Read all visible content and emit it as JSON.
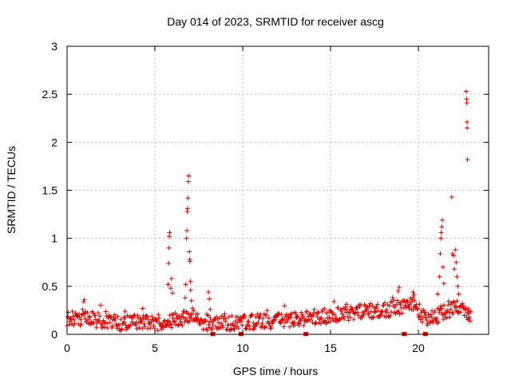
{
  "chart_data": {
    "type": "scatter",
    "title": "Day 014 of 2023, SRMTID for receiver ascg",
    "xlabel": "GPS time / hours",
    "ylabel": "SRMTID / TECUs",
    "xlim": [
      0,
      24
    ],
    "ylim": [
      0,
      3
    ],
    "x_ticks": [
      0,
      5,
      10,
      15,
      20
    ],
    "x_tick_labels": [
      "0",
      "5",
      "10",
      "15",
      "20"
    ],
    "y_ticks": [
      0,
      0.5,
      1,
      1.5,
      2,
      2.5,
      3
    ],
    "y_tick_labels": [
      "0",
      "0.5",
      "1",
      "1.5",
      "2",
      "2.5",
      "3"
    ],
    "grid": true,
    "marker": "+",
    "color": "#e00000",
    "data_gap_hours": [
      8.3,
      9.9,
      13.6,
      19.2,
      20.4
    ],
    "series": [
      {
        "name": "SRMTID",
        "background_level_profile": [
          [
            0.0,
            0.17
          ],
          [
            1.0,
            0.17
          ],
          [
            2.0,
            0.14
          ],
          [
            3.0,
            0.12
          ],
          [
            4.0,
            0.12
          ],
          [
            5.0,
            0.11
          ],
          [
            5.6,
            0.14
          ],
          [
            6.2,
            0.16
          ],
          [
            6.9,
            0.18
          ],
          [
            7.6,
            0.12
          ],
          [
            8.5,
            0.11
          ],
          [
            9.5,
            0.12
          ],
          [
            10.5,
            0.13
          ],
          [
            11.5,
            0.14
          ],
          [
            12.5,
            0.15
          ],
          [
            13.5,
            0.17
          ],
          [
            14.5,
            0.19
          ],
          [
            15.5,
            0.21
          ],
          [
            16.5,
            0.24
          ],
          [
            17.5,
            0.25
          ],
          [
            18.5,
            0.26
          ],
          [
            19.2,
            0.29
          ],
          [
            19.8,
            0.31
          ],
          [
            20.4,
            0.16
          ],
          [
            21.0,
            0.18
          ],
          [
            21.8,
            0.26
          ],
          [
            22.4,
            0.28
          ],
          [
            23.0,
            0.16
          ]
        ],
        "highlighted_points": [
          [
            0.95,
            0.34
          ],
          [
            0.98,
            0.36
          ],
          [
            3.3,
            0.24
          ],
          [
            4.3,
            0.27
          ],
          [
            5.75,
            0.52
          ],
          [
            5.78,
            0.74
          ],
          [
            5.8,
            0.9
          ],
          [
            5.82,
            1.02
          ],
          [
            5.84,
            1.06
          ],
          [
            5.9,
            0.48
          ],
          [
            5.95,
            0.58
          ],
          [
            6.0,
            0.43
          ],
          [
            6.6,
            0.18
          ],
          [
            6.72,
            0.38
          ],
          [
            6.76,
            0.52
          ],
          [
            6.8,
            1.0
          ],
          [
            6.82,
            1.08
          ],
          [
            6.84,
            1.28
          ],
          [
            6.86,
            1.31
          ],
          [
            6.88,
            1.42
          ],
          [
            6.9,
            1.59
          ],
          [
            6.92,
            1.65
          ],
          [
            6.96,
            0.86
          ],
          [
            6.98,
            0.78
          ],
          [
            7.0,
            0.76
          ],
          [
            7.02,
            0.55
          ],
          [
            7.04,
            0.46
          ],
          [
            7.08,
            0.35
          ],
          [
            8.05,
            0.44
          ],
          [
            8.1,
            0.37
          ],
          [
            8.15,
            0.26
          ],
          [
            18.85,
            0.45
          ],
          [
            18.9,
            0.49
          ],
          [
            19.7,
            0.44
          ],
          [
            19.75,
            0.41
          ],
          [
            21.1,
            0.42
          ],
          [
            21.2,
            0.6
          ],
          [
            21.25,
            0.84
          ],
          [
            21.28,
            1.0
          ],
          [
            21.3,
            1.06
          ],
          [
            21.33,
            1.12
          ],
          [
            21.36,
            1.19
          ],
          [
            21.4,
            0.7
          ],
          [
            21.45,
            0.53
          ],
          [
            21.9,
            1.43
          ],
          [
            21.95,
            0.84
          ],
          [
            22.0,
            0.82
          ],
          [
            22.05,
            0.68
          ],
          [
            22.1,
            0.88
          ],
          [
            22.15,
            0.75
          ],
          [
            22.2,
            0.6
          ],
          [
            22.25,
            0.5
          ],
          [
            22.3,
            0.42
          ],
          [
            22.72,
            2.53
          ],
          [
            22.74,
            2.45
          ],
          [
            22.76,
            2.41
          ],
          [
            22.77,
            2.21
          ],
          [
            22.78,
            2.15
          ],
          [
            22.8,
            1.82
          ],
          [
            22.85,
            0.22
          ],
          [
            22.9,
            0.18
          ]
        ]
      }
    ]
  }
}
